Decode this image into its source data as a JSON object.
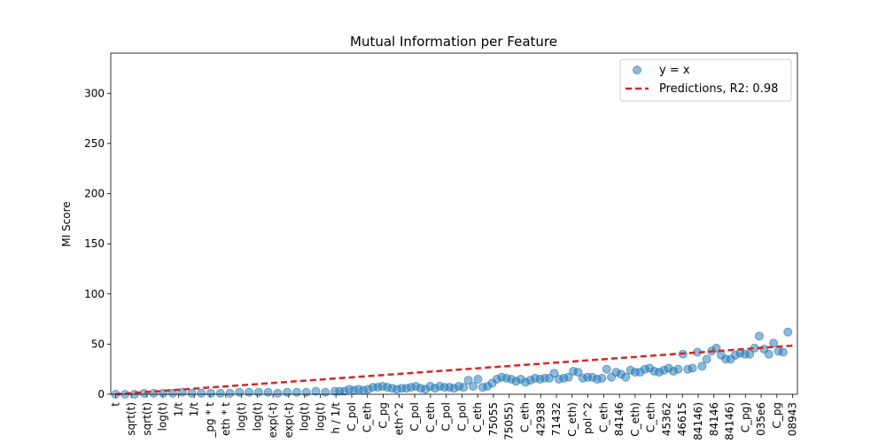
{
  "chart_data": {
    "type": "scatter",
    "title": "Mutual Information per Feature",
    "xlabel": "",
    "ylabel": "MI Score",
    "ylim": [
      0,
      340
    ],
    "yticks": [
      0,
      50,
      100,
      150,
      200,
      250,
      300
    ],
    "grid": false,
    "legend_position": "top-right",
    "xtick_labels": [
      "t",
      "sqrt(t)",
      "sqrt(t)",
      "log(t)",
      "1/t",
      "1/t",
      "_pg * t",
      "eth * t",
      "log(t)",
      "log(t)",
      "exp(-t)",
      "exp(-t)",
      "log(t)",
      "log(t)",
      "h / 1/t",
      "C_pol",
      "C_eth",
      "C_pg",
      "eth^2",
      "C_pol",
      "C_eth",
      "C_pol",
      "C_pol",
      "C_eth",
      "75055",
      "75055)",
      "C_eth",
      "42938",
      "71432",
      "C_eth)",
      "pol^2",
      "C_eth",
      "84146",
      "C_eth)",
      "C_eth",
      "45362",
      "46615",
      "84146)",
      "84146",
      "84146)",
      "C_pg)",
      "035e6",
      "C_pg",
      "08943"
    ],
    "series": [
      {
        "name": "y = x",
        "kind": "scatter",
        "color": "#1f77b4",
        "points": [
          [
            0,
            0
          ],
          [
            1,
            0
          ],
          [
            2,
            0
          ],
          [
            3,
            1
          ],
          [
            4,
            1
          ],
          [
            5,
            1
          ],
          [
            6,
            1
          ],
          [
            7,
            2
          ],
          [
            8,
            1
          ],
          [
            9,
            1
          ],
          [
            10,
            1
          ],
          [
            11,
            1
          ],
          [
            12,
            1
          ],
          [
            13,
            2
          ],
          [
            14,
            2
          ],
          [
            15,
            2
          ],
          [
            16,
            2
          ],
          [
            17,
            1
          ],
          [
            18,
            2
          ],
          [
            19,
            2
          ],
          [
            20,
            2
          ],
          [
            21,
            3
          ],
          [
            22,
            2
          ],
          [
            23,
            3
          ],
          [
            23.5,
            3
          ],
          [
            24,
            3
          ],
          [
            24.5,
            5
          ],
          [
            25,
            4
          ],
          [
            25.5,
            5
          ],
          [
            26,
            4
          ],
          [
            26.5,
            5
          ],
          [
            27,
            7
          ],
          [
            27.5,
            7
          ],
          [
            28,
            8
          ],
          [
            28.5,
            7
          ],
          [
            29,
            6
          ],
          [
            29.5,
            5
          ],
          [
            30,
            6
          ],
          [
            30.5,
            6
          ],
          [
            31,
            7
          ],
          [
            31.5,
            8
          ],
          [
            32,
            6
          ],
          [
            32.5,
            5
          ],
          [
            33,
            8
          ],
          [
            33.5,
            6
          ],
          [
            34,
            8
          ],
          [
            34.5,
            7
          ],
          [
            35,
            7
          ],
          [
            35.5,
            6
          ],
          [
            36,
            8
          ],
          [
            36.5,
            7
          ],
          [
            37,
            14
          ],
          [
            37.5,
            8
          ],
          [
            38,
            15
          ],
          [
            38.5,
            7
          ],
          [
            39,
            8
          ],
          [
            39.5,
            11
          ],
          [
            40,
            15
          ],
          [
            40.5,
            17
          ],
          [
            41,
            16
          ],
          [
            41.5,
            15
          ],
          [
            42,
            13
          ],
          [
            42.5,
            15
          ],
          [
            43,
            12
          ],
          [
            43.5,
            14
          ],
          [
            44,
            16
          ],
          [
            44.5,
            15
          ],
          [
            45,
            16
          ],
          [
            45.5,
            16
          ],
          [
            46,
            21
          ],
          [
            46.5,
            15
          ],
          [
            47,
            16
          ],
          [
            47.5,
            17
          ],
          [
            48,
            23
          ],
          [
            48.5,
            22
          ],
          [
            49,
            16
          ],
          [
            49.5,
            17
          ],
          [
            50,
            17
          ],
          [
            50.5,
            15
          ],
          [
            51,
            16
          ],
          [
            51.5,
            25
          ],
          [
            52,
            17
          ],
          [
            52.5,
            22
          ],
          [
            53,
            20
          ],
          [
            53.5,
            17
          ],
          [
            54,
            24
          ],
          [
            54.5,
            22
          ],
          [
            55,
            22
          ],
          [
            55.5,
            25
          ],
          [
            56,
            26
          ],
          [
            56.5,
            23
          ],
          [
            57,
            22
          ],
          [
            57.5,
            24
          ],
          [
            58,
            26
          ],
          [
            58.5,
            23
          ],
          [
            59,
            25
          ],
          [
            59.5,
            40
          ],
          [
            60,
            25
          ],
          [
            60.5,
            26
          ],
          [
            61,
            42
          ],
          [
            61.5,
            28
          ],
          [
            62,
            35
          ],
          [
            62.5,
            43
          ],
          [
            63,
            46
          ],
          [
            63.5,
            39
          ],
          [
            64,
            35
          ],
          [
            64.5,
            35
          ],
          [
            65,
            39
          ],
          [
            65.5,
            41
          ],
          [
            66,
            40
          ],
          [
            66.5,
            40
          ],
          [
            67,
            46
          ],
          [
            67.5,
            58
          ],
          [
            68,
            45
          ],
          [
            68.5,
            40
          ],
          [
            69,
            51
          ],
          [
            69.5,
            43
          ],
          [
            70,
            42
          ],
          [
            70.5,
            62
          ]
        ]
      },
      {
        "name": "Predictions, R2: 0.98",
        "kind": "line",
        "color": "#d62728",
        "x": [
          0,
          71
        ],
        "y": [
          0,
          48.5
        ]
      }
    ]
  }
}
